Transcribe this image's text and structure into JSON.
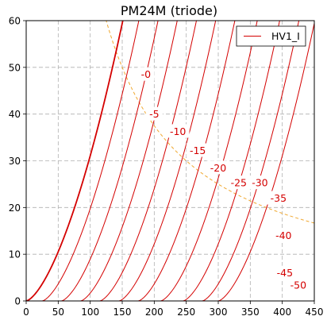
{
  "chart_data": {
    "type": "line",
    "title": "PM24M (triode)",
    "xlabel": "",
    "ylabel": "",
    "xlim": [
      0,
      450
    ],
    "ylim": [
      0,
      60
    ],
    "x_ticks": [
      0,
      50,
      100,
      150,
      200,
      250,
      300,
      350,
      400,
      450
    ],
    "y_ticks": [
      0,
      10,
      20,
      30,
      40,
      50,
      60
    ],
    "grid": true,
    "legend": {
      "placement": "top-right",
      "entries": [
        "HV1_I"
      ]
    },
    "series_color": "#d40000",
    "dissipation_color": "#f0a830",
    "series": [
      {
        "grid_voltage": 0,
        "label": "-0",
        "shift": 0,
        "bold": true
      },
      {
        "grid_voltage": -5,
        "label": "-5",
        "shift": 25,
        "bold": false
      },
      {
        "grid_voltage": -10,
        "label": "-10",
        "shift": 55,
        "bold": false
      },
      {
        "grid_voltage": -15,
        "label": "-15",
        "shift": 85,
        "bold": false
      },
      {
        "grid_voltage": -20,
        "label": "-20",
        "shift": 115,
        "bold": false
      },
      {
        "grid_voltage": -25,
        "label": "-25",
        "shift": 145,
        "bold": false
      },
      {
        "grid_voltage": -30,
        "label": "-30",
        "shift": 175,
        "bold": false
      },
      {
        "grid_voltage": -35,
        "label": "-35",
        "shift": 210,
        "bold": false
      },
      {
        "grid_voltage": -40,
        "label": "-40",
        "shift": 245,
        "bold": false
      },
      {
        "grid_voltage": -45,
        "label": "-45",
        "shift": 275,
        "bold": false
      },
      {
        "grid_voltage": -50,
        "label": "-50",
        "shift": 300,
        "bold": false
      }
    ],
    "curve_labels": [
      {
        "text": "-0",
        "x": 187,
        "y": 48.5
      },
      {
        "text": "-5",
        "x": 200,
        "y": 40.0
      },
      {
        "text": "-10",
        "x": 237,
        "y": 36.3
      },
      {
        "text": "-15",
        "x": 268,
        "y": 32.2
      },
      {
        "text": "-20",
        "x": 300,
        "y": 28.5
      },
      {
        "text": "-25",
        "x": 332,
        "y": 25.3
      },
      {
        "text": "-30",
        "x": 365,
        "y": 25.3
      },
      {
        "text": "-35",
        "x": 394,
        "y": 22.0
      },
      {
        "text": "-40",
        "x": 402,
        "y": 14.0
      },
      {
        "text": "-45",
        "x": 404,
        "y": 6.0
      },
      {
        "text": "-50",
        "x": 425,
        "y": 3.4
      }
    ],
    "max_dissipation_watts": 7.5
  }
}
